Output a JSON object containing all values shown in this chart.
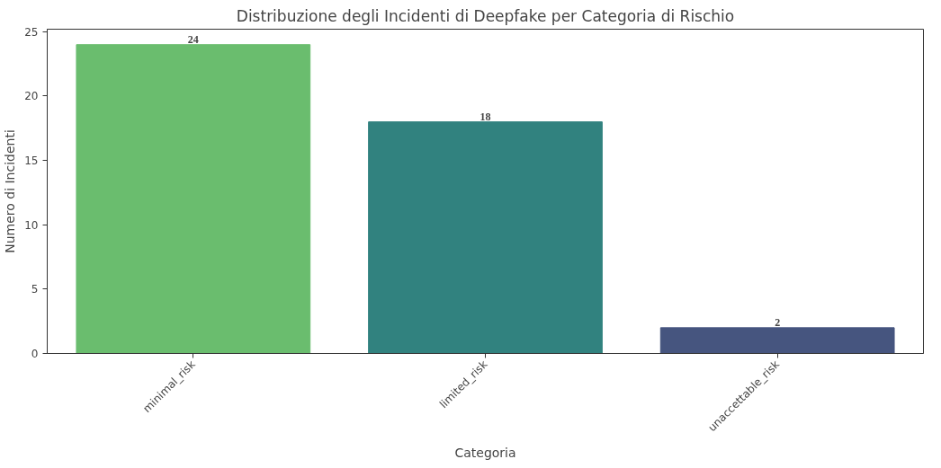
{
  "chart_data": {
    "type": "bar",
    "title": "Distribuzione degli Incidenti di Deepfake per Categoria di Rischio",
    "xlabel": "Categoria",
    "ylabel": "Numero di Incidenti",
    "categories": [
      "minimal_risk",
      "limited_risk",
      "unaccettable_risk"
    ],
    "values": [
      24,
      18,
      2
    ],
    "colors": [
      "#6abd6e",
      "#31827f",
      "#46557f"
    ],
    "ylim": [
      0,
      25.2
    ],
    "yticks": [
      0,
      5,
      10,
      15,
      20,
      25
    ],
    "grid": false,
    "data_labels": true
  }
}
